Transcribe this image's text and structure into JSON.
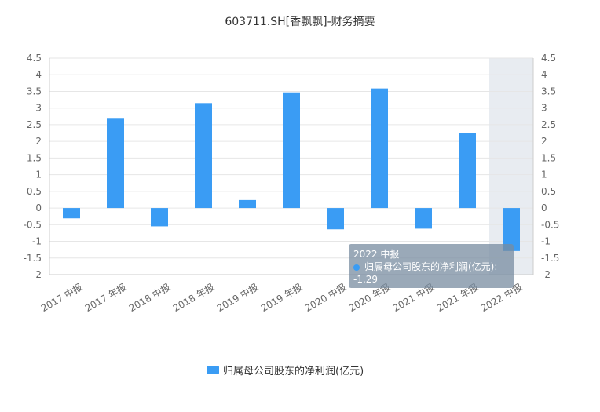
{
  "title": "603711.SH[香飘飘]-财务摘要",
  "colors": {
    "bar": "#3a9cf4",
    "highlight": "#e8ecf1",
    "axis": "#cccccc",
    "grid": "#e6e6e6"
  },
  "chart_data": {
    "type": "bar",
    "title": "603711.SH[香飘飘]-财务摘要",
    "categories": [
      "2017 中报",
      "2017 年报",
      "2018 中报",
      "2018 年报",
      "2019 中报",
      "2019 年报",
      "2020 中报",
      "2020 年报",
      "2021 中报",
      "2021 年报",
      "2022 中报"
    ],
    "series": [
      {
        "name": "归属母公司股东的净利润(亿元)",
        "values": [
          -0.31,
          2.68,
          -0.55,
          3.15,
          0.24,
          3.47,
          -0.64,
          3.59,
          -0.62,
          2.24,
          -1.29
        ]
      }
    ],
    "ylim": [
      -2,
      4.5
    ],
    "yticks": [
      "4.5",
      "4",
      "3.5",
      "3",
      "2.5",
      "2",
      "1.5",
      "1",
      "0.5",
      "0",
      "-0.5",
      "-1",
      "-1.5",
      "-2"
    ],
    "grid": true,
    "legend_position": "bottom",
    "highlighted_category": "2022 中报"
  },
  "tooltip": {
    "title": "2022 中报",
    "series_label": "归属母公司股东的净利润(亿元):",
    "value": "-1.29"
  },
  "legend": {
    "label": "归属母公司股东的净利润(亿元)"
  }
}
